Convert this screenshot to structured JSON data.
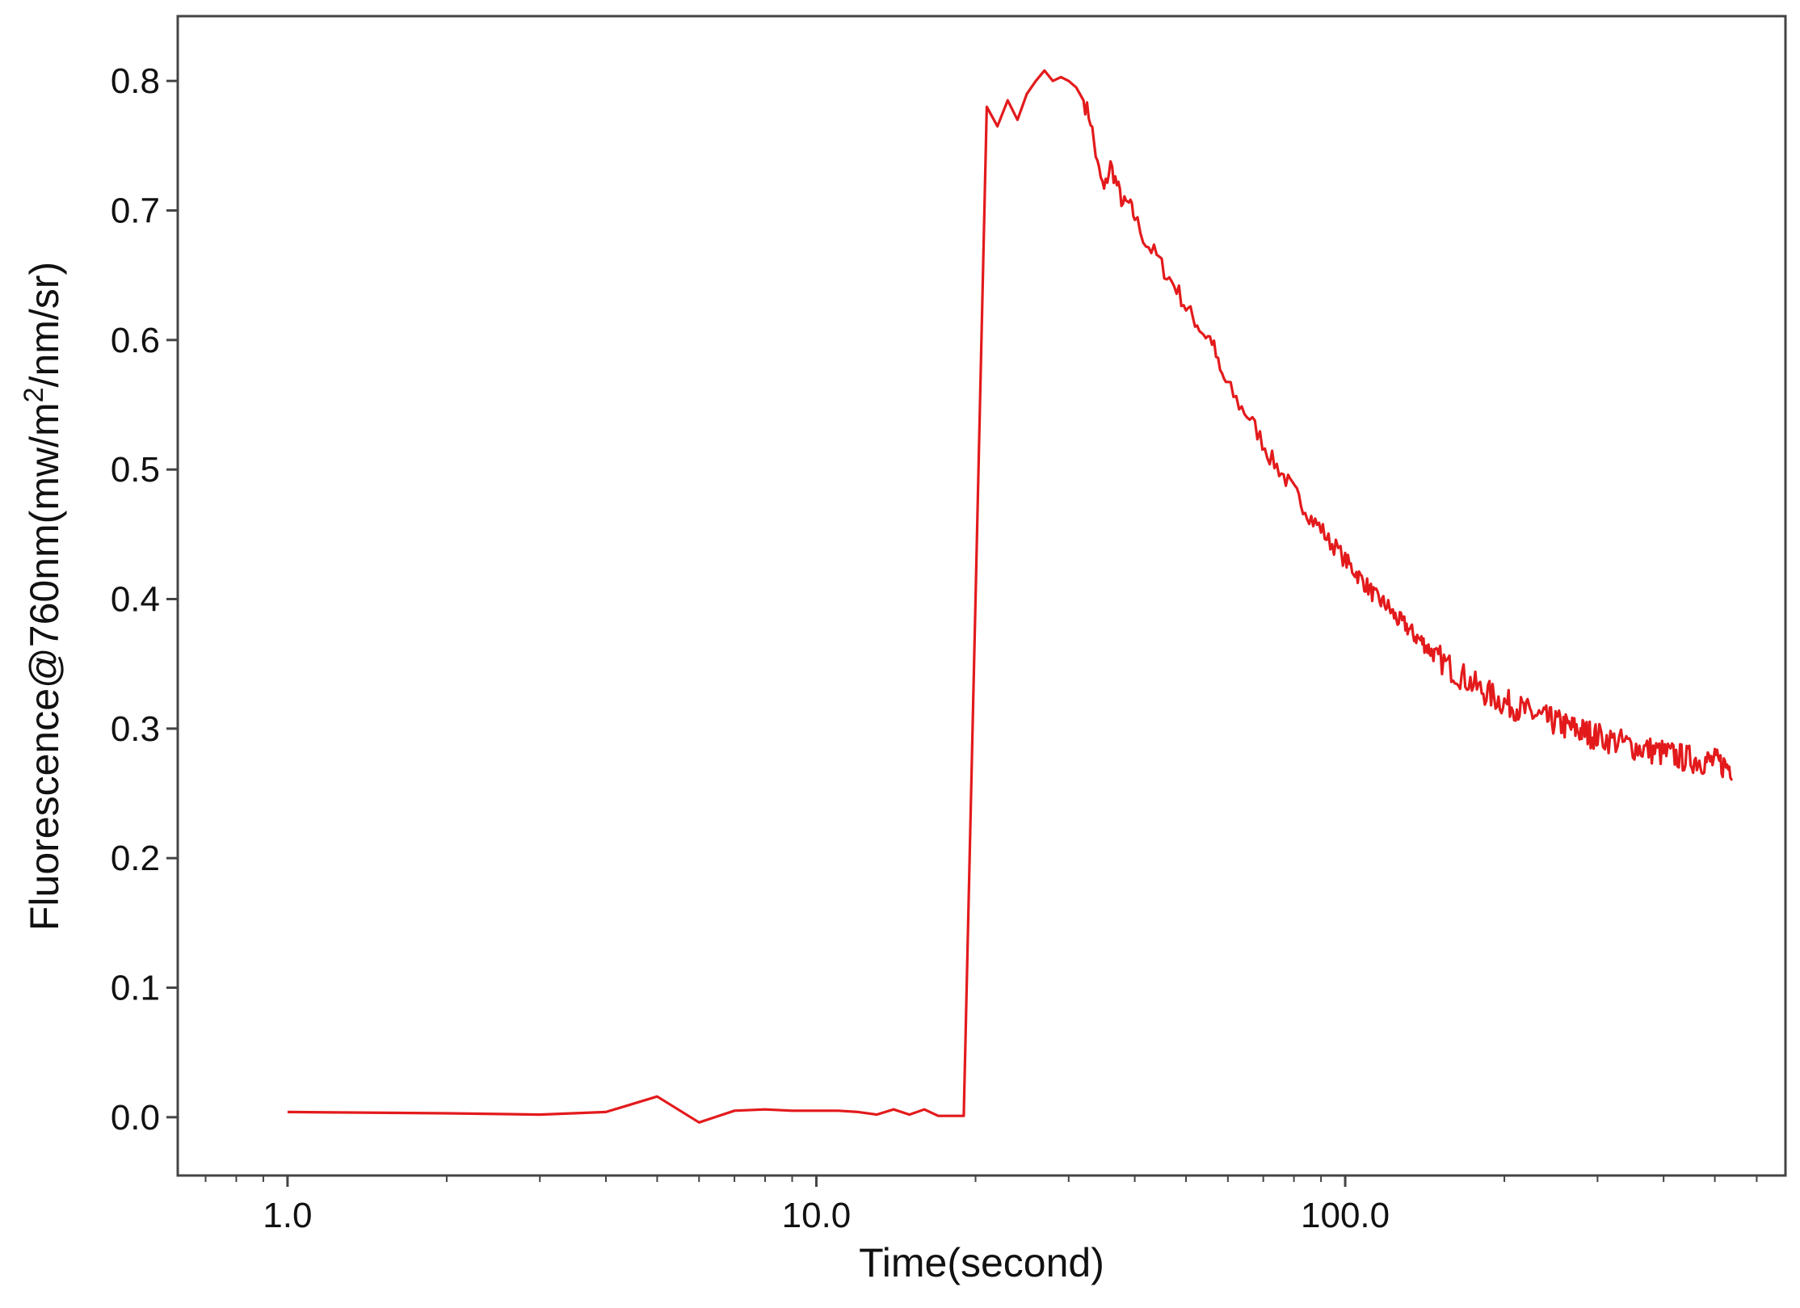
{
  "chart_data": {
    "type": "line",
    "title": "",
    "xlabel": "Time(second)",
    "ylabel": "Fluorescence@760nm(mw/m",
    "ylabel_superscript": "2",
    "ylabel_suffix": "/nm/sr)",
    "x_scale": "log",
    "xlim": [
      0.62,
      680
    ],
    "ylim": [
      -0.045,
      0.85
    ],
    "grid": false,
    "line_color": "#e31a1c",
    "x_ticks": [
      {
        "value": 1,
        "label": "1.0"
      },
      {
        "value": 10,
        "label": "10.0"
      },
      {
        "value": 100,
        "label": "100.0"
      }
    ],
    "y_ticks": [
      {
        "value": 0.0,
        "label": "0.0"
      },
      {
        "value": 0.1,
        "label": "0.1"
      },
      {
        "value": 0.2,
        "label": "0.2"
      },
      {
        "value": 0.3,
        "label": "0.3"
      },
      {
        "value": 0.4,
        "label": "0.4"
      },
      {
        "value": 0.5,
        "label": "0.5"
      },
      {
        "value": 0.6,
        "label": "0.6"
      },
      {
        "value": 0.7,
        "label": "0.7"
      },
      {
        "value": 0.8,
        "label": "0.8"
      }
    ],
    "series": [
      {
        "x": [
          1,
          2,
          3,
          4,
          5,
          6,
          7,
          8,
          9,
          10,
          11,
          12,
          13,
          14,
          15,
          16,
          17,
          18,
          19,
          20,
          21,
          22,
          23,
          24,
          25,
          26,
          27,
          28,
          29,
          30,
          31,
          32,
          33,
          34,
          35,
          36,
          37,
          38,
          39,
          40,
          42,
          44,
          46,
          48,
          50,
          52,
          54,
          56,
          58,
          60,
          63,
          66,
          69,
          72,
          75,
          78,
          81,
          84,
          87,
          90,
          93,
          96,
          100,
          105,
          110,
          115,
          120,
          125,
          130,
          135,
          140,
          145,
          150,
          160,
          170,
          180,
          190,
          200,
          210,
          220,
          230,
          240,
          250,
          260,
          270,
          280,
          290,
          300,
          320,
          340,
          360,
          380,
          400,
          420,
          440,
          460,
          480,
          500,
          520,
          540
        ],
        "values": [
          0.004,
          0.003,
          0.002,
          0.004,
          0.016,
          -0.004,
          0.005,
          0.006,
          0.005,
          0.005,
          0.005,
          0.004,
          0.002,
          0.006,
          0.002,
          0.006,
          0.001,
          0.001,
          0.001,
          0.4,
          0.78,
          0.765,
          0.785,
          0.77,
          0.79,
          0.8,
          0.808,
          0.8,
          0.803,
          0.8,
          0.795,
          0.785,
          0.77,
          0.735,
          0.715,
          0.735,
          0.72,
          0.705,
          0.705,
          0.695,
          0.675,
          0.665,
          0.65,
          0.64,
          0.625,
          0.615,
          0.605,
          0.6,
          0.575,
          0.565,
          0.55,
          0.54,
          0.525,
          0.51,
          0.5,
          0.49,
          0.48,
          0.47,
          0.46,
          0.455,
          0.445,
          0.44,
          0.43,
          0.42,
          0.41,
          0.4,
          0.395,
          0.385,
          0.38,
          0.372,
          0.367,
          0.36,
          0.355,
          0.345,
          0.338,
          0.33,
          0.325,
          0.32,
          0.317,
          0.313,
          0.31,
          0.307,
          0.305,
          0.302,
          0.3,
          0.298,
          0.296,
          0.294,
          0.291,
          0.288,
          0.285,
          0.283,
          0.281,
          0.279,
          0.277,
          0.276,
          0.275,
          0.274,
          0.272,
          0.27
        ]
      }
    ]
  }
}
